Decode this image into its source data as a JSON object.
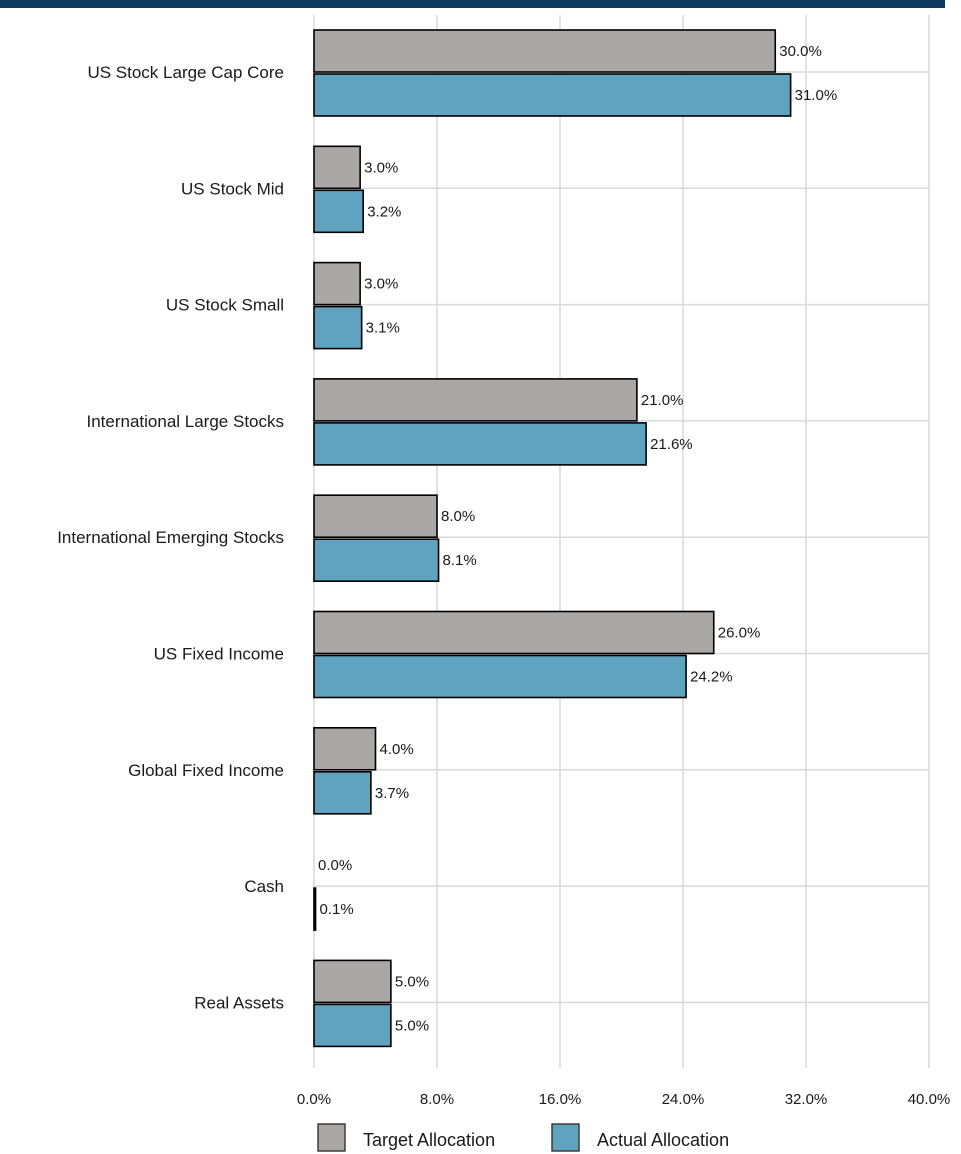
{
  "chart_data": {
    "type": "bar",
    "orientation": "horizontal",
    "categories": [
      "US Stock Large Cap Core",
      "US Stock Mid",
      "US Stock Small",
      "International Large Stocks",
      "International Emerging Stocks",
      "US Fixed Income",
      "Global Fixed Income",
      "Cash",
      "Real Assets"
    ],
    "series": [
      {
        "name": "Target Allocation",
        "color": "#aba7a6",
        "values": [
          30.0,
          3.0,
          3.0,
          21.0,
          8.0,
          26.0,
          4.0,
          0.0,
          5.0
        ],
        "labels": [
          "30.0%",
          "3.0%",
          "3.0%",
          "21.0%",
          "8.0%",
          "26.0%",
          "4.0%",
          "0.0%",
          "5.0%"
        ]
      },
      {
        "name": "Actual Allocation",
        "color": "#5fa3c1",
        "values": [
          31.0,
          3.2,
          3.1,
          21.6,
          8.1,
          24.2,
          3.7,
          0.1,
          5.0
        ],
        "labels": [
          "31.0%",
          "3.2%",
          "3.1%",
          "21.6%",
          "8.1%",
          "24.2%",
          "3.7%",
          "0.1%",
          "5.0%"
        ]
      }
    ],
    "xlim": [
      0,
      40
    ],
    "x_ticks": [
      0,
      8,
      16,
      24,
      32,
      40
    ],
    "x_tick_labels": [
      "0.0%",
      "8.0%",
      "16.0%",
      "24.0%",
      "32.0%",
      "40.0%"
    ],
    "grid": true,
    "legend_position": "bottom",
    "title": "",
    "xlabel": "",
    "ylabel": ""
  },
  "colors": {
    "header_bar": "#0d3a5e",
    "gridline": "#d9d9d9",
    "bar_outline": "#000000"
  }
}
